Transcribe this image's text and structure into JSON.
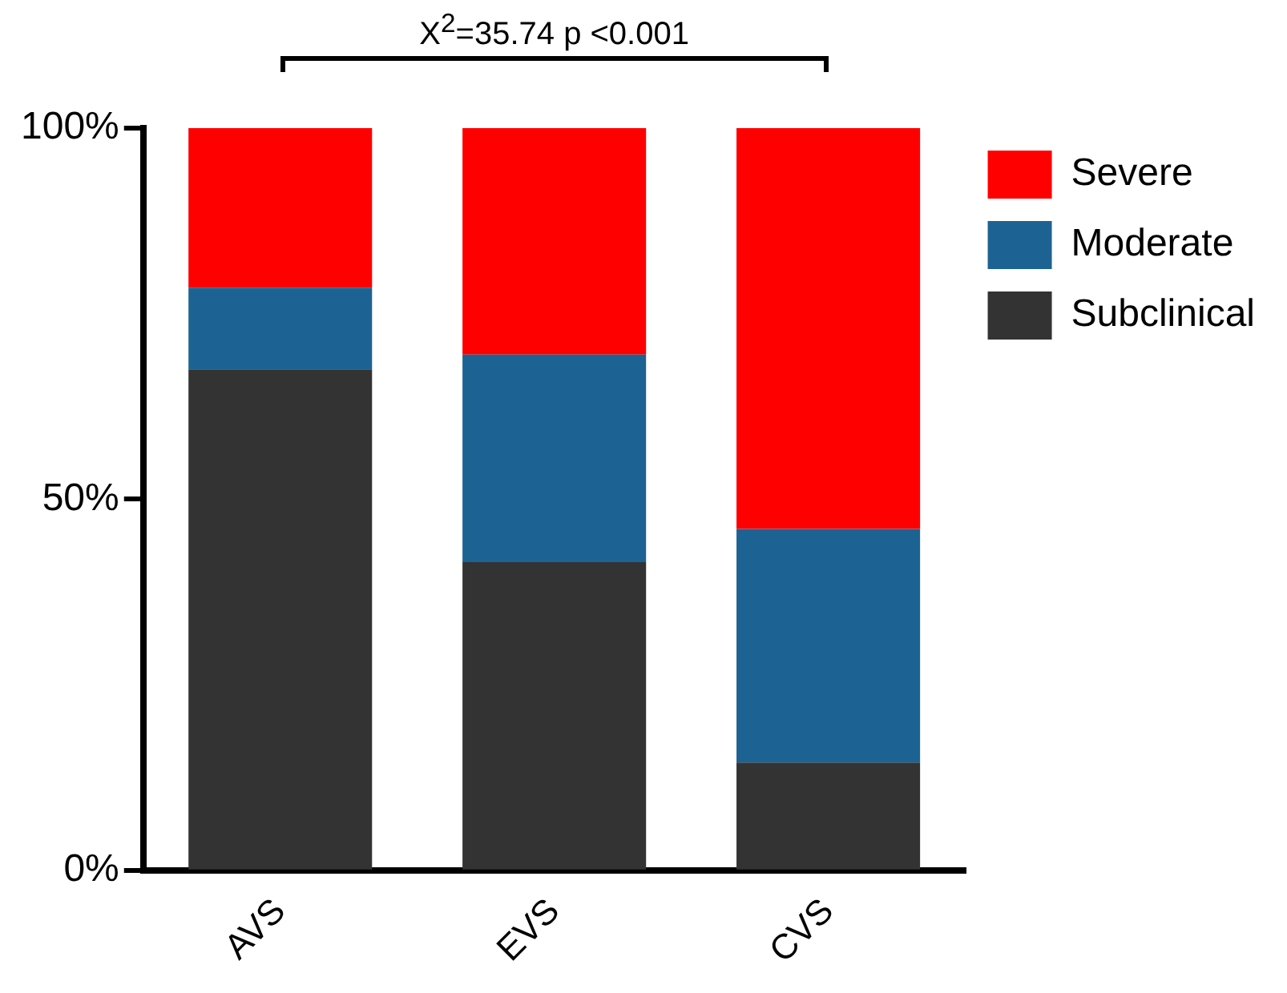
{
  "chart_data": {
    "type": "bar",
    "stacked": true,
    "categories": [
      "AVS",
      "EVS",
      "CVS"
    ],
    "series": [
      {
        "name": "Subclinical",
        "color": "#333333",
        "values": [
          67.5,
          41.5,
          14.5
        ]
      },
      {
        "name": "Moderate",
        "color": "#1c6393",
        "values": [
          11,
          28,
          31.5
        ]
      },
      {
        "name": "Severe",
        "color": "#fe0000",
        "values": [
          21.5,
          30.5,
          54
        ]
      }
    ],
    "ylim": [
      0,
      100
    ],
    "yticks": [
      {
        "value": 0,
        "label": "0%"
      },
      {
        "value": 50,
        "label": "50%"
      },
      {
        "value": 100,
        "label": "100%"
      }
    ],
    "grid": false,
    "legend": "top right",
    "annotations": [
      "X$^{2}$=35.74 p <0.001"
    ]
  }
}
